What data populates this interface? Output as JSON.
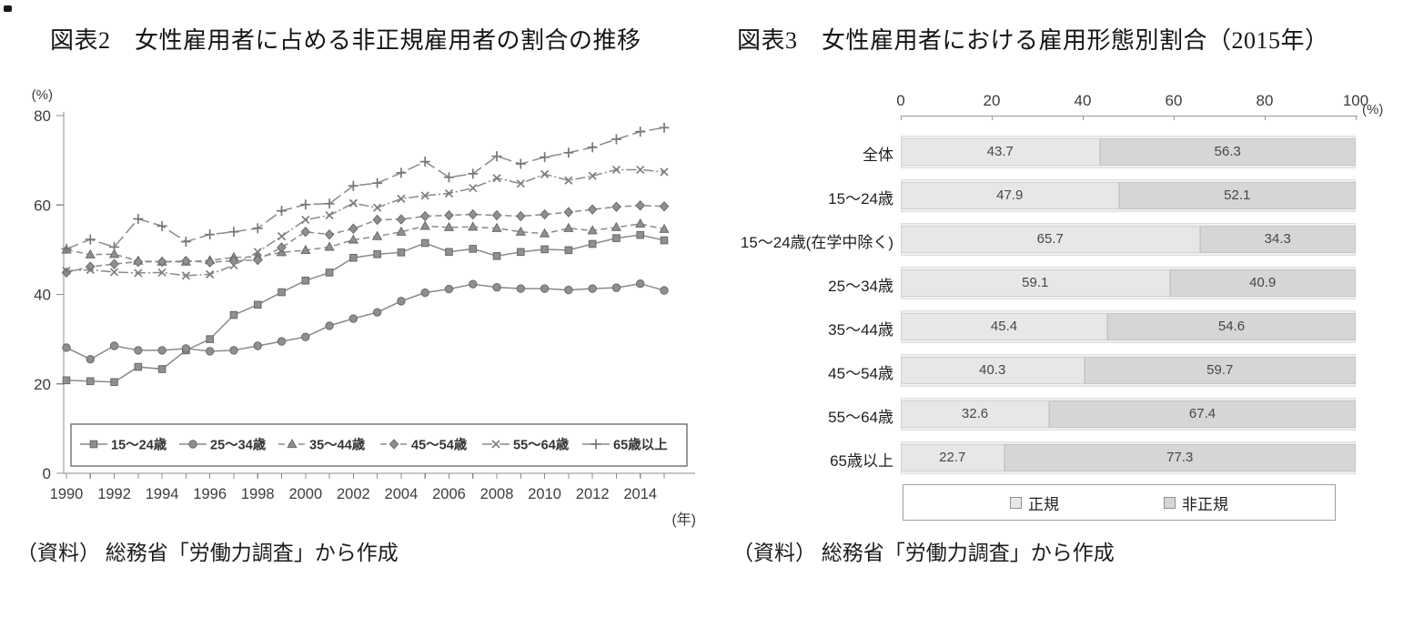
{
  "colors": {
    "line_gray": "#8a8a8a",
    "marker_fill": "#8f8f8f",
    "marker_edge": "#6a6a6a",
    "axis_gray": "#8c8c8c",
    "text_dark": "#3d3d3d",
    "bar_regular": "#e7e7e7",
    "bar_regular_edge": "#d2d2d2",
    "bar_nonregular": "#d6d6d6",
    "bar_nonregular_edge": "#c4c4c4",
    "bar_track": "#efefef"
  },
  "chart_data": [
    {
      "id": "fig2",
      "type": "line",
      "title": "図表2　女性雇用者に占める非正規雇用者の割合の推移",
      "ylabel": "(%)",
      "xlabel": "(年)",
      "ylim": [
        0,
        80
      ],
      "yticks": [
        0,
        20,
        40,
        60,
        80
      ],
      "grid": false,
      "legend_position": "bottom-inside-box",
      "x": [
        1990,
        1991,
        1992,
        1993,
        1994,
        1995,
        1996,
        1997,
        1998,
        1999,
        2000,
        2001,
        2002,
        2003,
        2004,
        2005,
        2006,
        2007,
        2008,
        2009,
        2010,
        2011,
        2012,
        2013,
        2014,
        2015
      ],
      "x_tick_labels": [
        "1990",
        "1992",
        "1994",
        "1996",
        "1998",
        "2000",
        "2002",
        "2004",
        "2006",
        "2008",
        "2010",
        "2012",
        "2014"
      ],
      "series": [
        {
          "name": "15〜24歳",
          "marker": "square",
          "line": "solid",
          "values": [
            20.8,
            20.6,
            20.4,
            23.8,
            23.3,
            27.5,
            30.0,
            35.4,
            37.7,
            40.5,
            43.1,
            44.9,
            48.2,
            49.0,
            49.4,
            51.5,
            49.5,
            50.2,
            48.6,
            49.5,
            50.1,
            49.9,
            51.3,
            52.6,
            53.3,
            52.1
          ]
        },
        {
          "name": "25〜34歳",
          "marker": "circle",
          "line": "solid",
          "values": [
            28.1,
            25.5,
            28.5,
            27.5,
            27.5,
            27.9,
            27.3,
            27.5,
            28.5,
            29.5,
            30.5,
            33.0,
            34.6,
            36.0,
            38.5,
            40.4,
            41.2,
            42.3,
            41.6,
            41.3,
            41.3,
            41.0,
            41.3,
            41.5,
            42.4,
            40.9
          ]
        },
        {
          "name": "35〜44歳",
          "marker": "triangle",
          "line": "dashed",
          "values": [
            50.0,
            48.9,
            49.0,
            47.5,
            47.3,
            47.3,
            47.6,
            48.3,
            48.4,
            49.4,
            49.9,
            50.6,
            52.2,
            53.0,
            54.0,
            55.3,
            55.0,
            55.1,
            54.8,
            54.0,
            53.6,
            54.8,
            54.3,
            55.0,
            55.8,
            54.6
          ]
        },
        {
          "name": "45〜54歳",
          "marker": "diamond",
          "line": "dashed",
          "values": [
            44.9,
            46.2,
            46.8,
            47.3,
            47.3,
            47.5,
            47.2,
            47.5,
            47.7,
            50.5,
            54.0,
            53.4,
            54.7,
            56.7,
            56.8,
            57.5,
            57.7,
            57.9,
            57.7,
            57.5,
            57.9,
            58.4,
            59.0,
            59.6,
            59.9,
            59.7
          ]
        },
        {
          "name": "55〜64歳",
          "marker": "x",
          "line": "dashdot",
          "values": [
            45.3,
            45.5,
            45.0,
            44.8,
            44.9,
            44.2,
            44.5,
            46.5,
            49.5,
            53.0,
            56.7,
            57.7,
            60.4,
            59.4,
            61.4,
            62.1,
            62.6,
            63.8,
            66.0,
            64.8,
            66.9,
            65.5,
            66.5,
            67.9,
            67.9,
            67.4
          ]
        },
        {
          "name": "65歳以上",
          "marker": "plus",
          "line": "longdash",
          "values": [
            50.2,
            52.3,
            50.6,
            56.9,
            55.3,
            51.8,
            53.4,
            54.0,
            54.8,
            58.7,
            60.1,
            60.3,
            64.3,
            64.9,
            67.2,
            69.7,
            66.2,
            67.0,
            70.9,
            69.2,
            70.7,
            71.7,
            72.9,
            74.7,
            76.4,
            77.3
          ]
        }
      ],
      "source": "（資料） 総務省「労働力調査」から作成"
    },
    {
      "id": "fig3",
      "type": "bar",
      "orientation": "horizontal-stacked",
      "title": "図表3　女性雇用者における雇用形態別割合（2015年）",
      "x_unit": "(%)",
      "xlim": [
        0,
        100
      ],
      "xticks": [
        0,
        20,
        40,
        60,
        80,
        100
      ],
      "grid": false,
      "legend_position": "bottom-box",
      "categories": [
        "全体",
        "15〜24歳",
        "15〜24歳(在学中除く)",
        "25〜34歳",
        "35〜44歳",
        "45〜54歳",
        "55〜64歳",
        "65歳以上"
      ],
      "series": [
        {
          "name": "正規",
          "values": [
            43.7,
            47.9,
            65.7,
            59.1,
            45.4,
            40.3,
            32.6,
            22.7
          ]
        },
        {
          "name": "非正規",
          "values": [
            56.3,
            52.1,
            34.3,
            40.9,
            54.6,
            59.7,
            67.4,
            77.3
          ]
        }
      ],
      "source": "（資料） 総務省「労働力調査」から作成"
    }
  ]
}
